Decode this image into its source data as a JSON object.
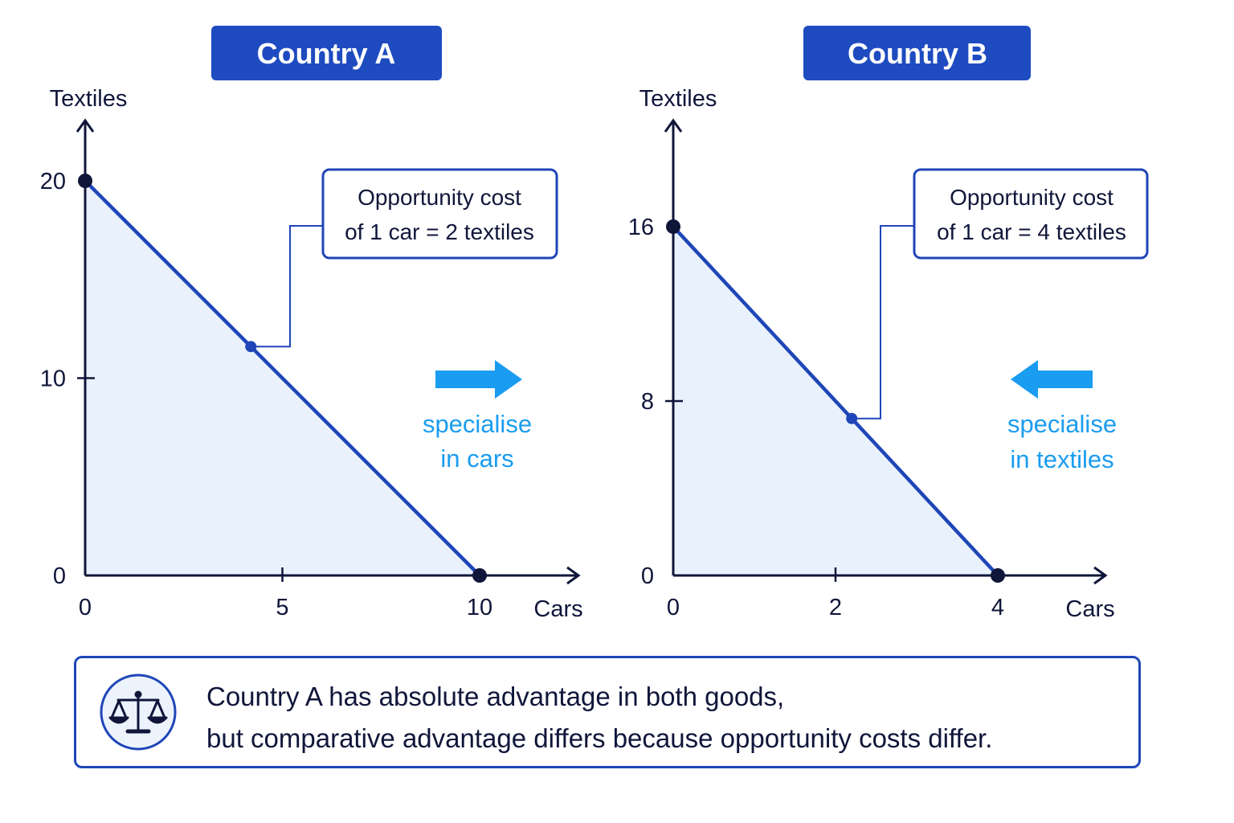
{
  "colors": {
    "navy": "#10163a",
    "frontier": "#1f46b8",
    "fill": "#e9f2fc",
    "title_bg": "#1e4bc0",
    "arrow": "#1a9cf0"
  },
  "chart_data": [
    {
      "type": "line",
      "title": "Country A",
      "xlabel": "Cars",
      "ylabel": "Textiles",
      "xlim": [
        0,
        10
      ],
      "ylim": [
        0,
        20
      ],
      "xticks": [
        "0",
        "5",
        "10"
      ],
      "yticks": [
        "0",
        "10",
        "20"
      ],
      "series": [
        {
          "x": [
            0,
            10
          ],
          "y": [
            20,
            0
          ]
        }
      ],
      "highlight_point": {
        "x": 4.2,
        "y": 11.6
      },
      "annotation": {
        "line1": "Opportunity cost",
        "line2": "of 1 car = 2 textiles"
      },
      "arrow": {
        "direction": "right",
        "line1": "specialise",
        "line2": "in cars"
      }
    },
    {
      "type": "line",
      "title": "Country B",
      "xlabel": "Cars",
      "ylabel": "Textiles",
      "xlim": [
        0,
        4
      ],
      "ylim": [
        0,
        16
      ],
      "xticks": [
        "0",
        "2",
        "4"
      ],
      "yticks": [
        "0",
        "8",
        "16"
      ],
      "series": [
        {
          "x": [
            0,
            4
          ],
          "y": [
            16,
            0
          ]
        }
      ],
      "highlight_point": {
        "x": 2.2,
        "y": 7.2
      },
      "annotation": {
        "line1": "Opportunity cost",
        "line2": "of 1 car = 4 textiles"
      },
      "arrow": {
        "direction": "left",
        "line1": "specialise",
        "line2": "in textiles"
      }
    }
  ],
  "footer": {
    "icon": "balance-scale-icon",
    "line1": "Country A has absolute advantage in both goods,",
    "line2": "but comparative advantage differs because opportunity costs differ."
  }
}
